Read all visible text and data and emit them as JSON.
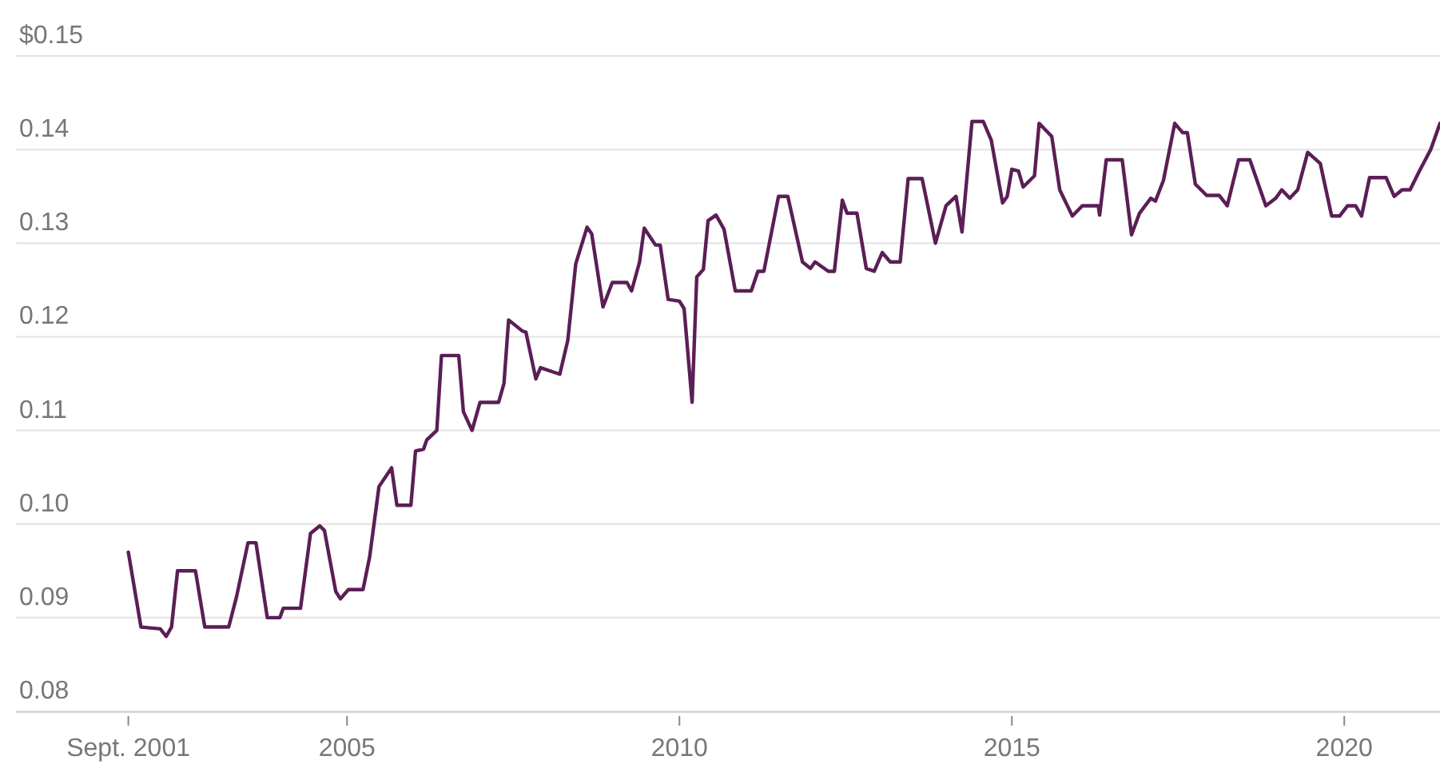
{
  "chart_data": {
    "type": "line",
    "grid": "y",
    "legend": false,
    "marker": "none",
    "line_style": "solid",
    "xlim": [
      2000.02,
      2021.44
    ],
    "ylim": [
      0.08,
      0.15
    ],
    "xticks": [
      {
        "value": 2001.71,
        "label": "Sept. 2001"
      },
      2005,
      2010,
      2015,
      2020
    ],
    "yticks": [
      {
        "value": 0.08,
        "label": "0.08"
      },
      {
        "value": 0.09,
        "label": "0.09"
      },
      {
        "value": 0.1,
        "label": "0.10"
      },
      {
        "value": 0.11,
        "label": "0.11"
      },
      {
        "value": 0.12,
        "label": "0.12"
      },
      {
        "value": 0.13,
        "label": "0.13"
      },
      {
        "value": 0.14,
        "label": "0.14"
      },
      {
        "value": 0.15,
        "label": "$0.15"
      }
    ],
    "series": [
      {
        "color": "#5b1e57",
        "x": [
          2001.71,
          2001.9,
          2002.19,
          2002.28,
          2002.36,
          2002.45,
          2002.72,
          2002.86,
          2003.22,
          2003.34,
          2003.51,
          2003.63,
          2003.8,
          2003.99,
          2004.04,
          2004.3,
          2004.45,
          2004.59,
          2004.66,
          2004.83,
          2004.9,
          2005.02,
          2005.24,
          2005.34,
          2005.48,
          2005.67,
          2005.75,
          2005.96,
          2006.03,
          2006.15,
          2006.2,
          2006.35,
          2006.42,
          2006.68,
          2006.75,
          2006.88,
          2007.0,
          2007.28,
          2007.36,
          2007.43,
          2007.64,
          2007.69,
          2007.84,
          2007.91,
          2008.2,
          2008.32,
          2008.44,
          2008.61,
          2008.68,
          2008.85,
          2008.99,
          2009.21,
          2009.28,
          2009.4,
          2009.47,
          2009.64,
          2009.71,
          2009.83,
          2010.0,
          2010.07,
          2010.19,
          2010.26,
          2010.36,
          2010.43,
          2010.55,
          2010.67,
          2010.84,
          2011.08,
          2011.18,
          2011.27,
          2011.49,
          2011.63,
          2011.85,
          2011.97,
          2012.04,
          2012.24,
          2012.33,
          2012.45,
          2012.52,
          2012.67,
          2012.81,
          2012.93,
          2013.05,
          2013.17,
          2013.32,
          2013.44,
          2013.65,
          2013.85,
          2014.01,
          2014.16,
          2014.25,
          2014.4,
          2014.57,
          2014.69,
          2014.86,
          2014.93,
          2015.0,
          2015.1,
          2015.17,
          2015.34,
          2015.41,
          2015.6,
          2015.72,
          2015.91,
          2016.06,
          2016.3,
          2016.32,
          2016.42,
          2016.66,
          2016.8,
          2016.92,
          2017.09,
          2017.16,
          2017.28,
          2017.45,
          2017.57,
          2017.64,
          2017.76,
          2017.93,
          2018.12,
          2018.24,
          2018.41,
          2018.58,
          2018.82,
          2018.97,
          2019.06,
          2019.18,
          2019.3,
          2019.45,
          2019.64,
          2019.81,
          2019.93,
          2020.05,
          2020.17,
          2020.26,
          2020.38,
          2020.63,
          2020.75,
          2020.87,
          2020.99,
          2021.13,
          2021.3,
          2021.44
        ],
        "values": [
          0.097,
          0.089,
          0.0888,
          0.088,
          0.089,
          0.095,
          0.095,
          0.089,
          0.089,
          0.0923,
          0.098,
          0.098,
          0.09,
          0.09,
          0.091,
          0.091,
          0.099,
          0.0998,
          0.0993,
          0.0928,
          0.092,
          0.093,
          0.093,
          0.0965,
          0.104,
          0.106,
          0.102,
          0.102,
          0.1078,
          0.108,
          0.109,
          0.11,
          0.118,
          0.118,
          0.112,
          0.11,
          0.113,
          0.113,
          0.115,
          0.1218,
          0.1206,
          0.1205,
          0.1155,
          0.1167,
          0.116,
          0.1196,
          0.1278,
          0.1317,
          0.131,
          0.1232,
          0.1258,
          0.1258,
          0.1249,
          0.128,
          0.1316,
          0.1298,
          0.1298,
          0.124,
          0.1238,
          0.123,
          0.113,
          0.1264,
          0.1272,
          0.1324,
          0.133,
          0.1315,
          0.1249,
          0.1249,
          0.127,
          0.127,
          0.135,
          0.135,
          0.128,
          0.1273,
          0.128,
          0.127,
          0.127,
          0.1346,
          0.1332,
          0.1332,
          0.1273,
          0.127,
          0.129,
          0.128,
          0.128,
          0.1369,
          0.1369,
          0.13,
          0.134,
          0.135,
          0.1312,
          0.143,
          0.143,
          0.141,
          0.1343,
          0.135,
          0.1379,
          0.1377,
          0.136,
          0.1372,
          0.1428,
          0.1414,
          0.1357,
          0.1329,
          0.134,
          0.134,
          0.133,
          0.1389,
          0.1389,
          0.1309,
          0.1332,
          0.1348,
          0.1345,
          0.1367,
          0.1428,
          0.1418,
          0.1418,
          0.1363,
          0.1351,
          0.1351,
          0.134,
          0.1389,
          0.1389,
          0.134,
          0.1348,
          0.1357,
          0.1348,
          0.1357,
          0.1397,
          0.1385,
          0.1329,
          0.1329,
          0.134,
          0.134,
          0.1329,
          0.137,
          0.137,
          0.135,
          0.1357,
          0.1357,
          0.1377,
          0.14,
          0.1428
        ]
      }
    ]
  }
}
